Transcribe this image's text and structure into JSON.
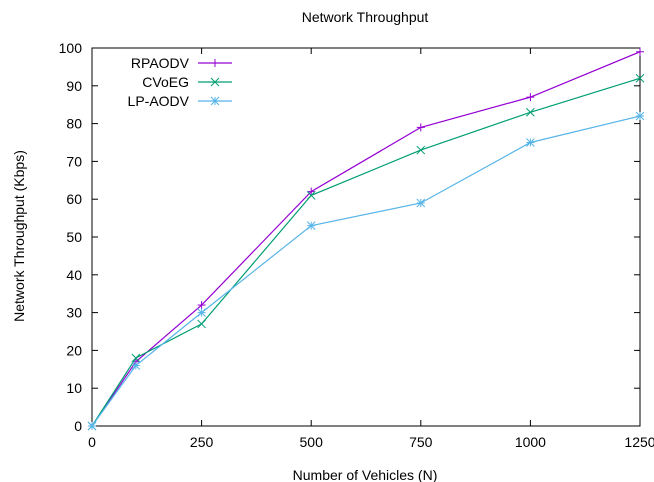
{
  "chart_data": {
    "type": "line",
    "title": "Network Throughput",
    "xlabel": "Number of Vehicles (N)",
    "ylabel": "Network Throughput (Kbps)",
    "xlim": [
      0,
      1250
    ],
    "ylim": [
      0,
      100
    ],
    "xticks": [
      0,
      250,
      500,
      750,
      1000,
      1250
    ],
    "yticks": [
      0,
      10,
      20,
      30,
      40,
      50,
      60,
      70,
      80,
      90,
      100
    ],
    "grid": false,
    "legend_position": "top-left",
    "series": [
      {
        "name": "RPAODV",
        "color": "#9400d3",
        "marker": "plus",
        "x": [
          0,
          100,
          250,
          500,
          750,
          1000,
          1250
        ],
        "y": [
          0,
          17,
          32,
          62,
          79,
          87,
          99
        ]
      },
      {
        "name": "CVoEG",
        "color": "#009e73",
        "marker": "cross",
        "x": [
          0,
          100,
          250,
          500,
          750,
          1000,
          1250
        ],
        "y": [
          0,
          18,
          27,
          61,
          73,
          83,
          92
        ]
      },
      {
        "name": "LP-AODV",
        "color": "#56b4e9",
        "marker": "star",
        "x": [
          0,
          100,
          250,
          500,
          750,
          1000,
          1250
        ],
        "y": [
          0,
          16,
          30,
          53,
          59,
          75,
          82
        ]
      }
    ]
  }
}
